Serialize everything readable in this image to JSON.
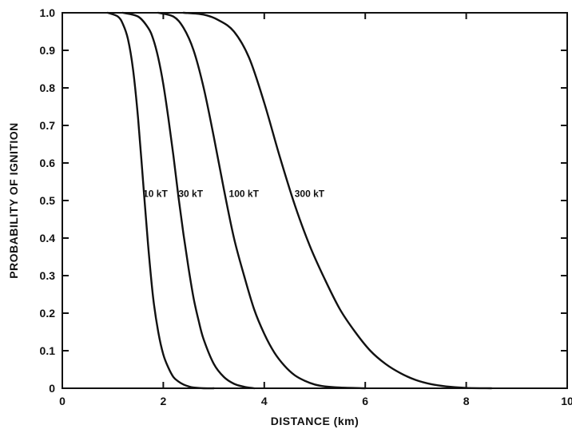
{
  "chart_data": {
    "type": "line",
    "title": "",
    "xlabel": "DISTANCE (km)",
    "ylabel": "PROBABILITY OF IGNITION",
    "xlim": [
      0,
      10
    ],
    "ylim": [
      0,
      1.0
    ],
    "grid": false,
    "x_ticks": [
      "0",
      "2",
      "4",
      "6",
      "8",
      "10"
    ],
    "y_ticks": [
      "0",
      "0.1",
      "0.2",
      "0.3",
      "0.4",
      "0.5",
      "0.6",
      "0.7",
      "0.8",
      "0.9",
      "1.0"
    ],
    "series": [
      {
        "name": "10 kT",
        "x": [
          0.9,
          1.1,
          1.2,
          1.3,
          1.4,
          1.5,
          1.6,
          1.7,
          1.8,
          1.9,
          2.0,
          2.1,
          2.2,
          2.3,
          2.4,
          2.5,
          2.6,
          2.8,
          3.0
        ],
        "y": [
          1.0,
          0.99,
          0.97,
          0.93,
          0.85,
          0.72,
          0.55,
          0.38,
          0.24,
          0.15,
          0.09,
          0.055,
          0.03,
          0.018,
          0.01,
          0.005,
          0.002,
          0.0,
          0.0
        ]
      },
      {
        "name": "30 kT",
        "x": [
          1.2,
          1.5,
          1.7,
          1.8,
          1.9,
          2.0,
          2.1,
          2.2,
          2.3,
          2.4,
          2.5,
          2.6,
          2.7,
          2.8,
          3.0,
          3.2,
          3.4,
          3.6,
          3.8
        ],
        "y": [
          1.0,
          0.99,
          0.96,
          0.93,
          0.88,
          0.81,
          0.72,
          0.62,
          0.51,
          0.41,
          0.32,
          0.24,
          0.18,
          0.13,
          0.065,
          0.03,
          0.012,
          0.004,
          0.0
        ]
      },
      {
        "name": "100 kT",
        "x": [
          1.9,
          2.2,
          2.4,
          2.6,
          2.8,
          3.0,
          3.2,
          3.4,
          3.6,
          3.8,
          4.0,
          4.2,
          4.4,
          4.6,
          4.8,
          5.0,
          5.2,
          5.5,
          6.0
        ],
        "y": [
          1.0,
          0.99,
          0.96,
          0.9,
          0.8,
          0.67,
          0.53,
          0.4,
          0.3,
          0.21,
          0.145,
          0.095,
          0.06,
          0.035,
          0.02,
          0.01,
          0.005,
          0.002,
          0.0
        ]
      },
      {
        "name": "300 kT",
        "x": [
          2.4,
          2.8,
          3.1,
          3.4,
          3.7,
          4.0,
          4.3,
          4.6,
          4.9,
          5.2,
          5.5,
          5.8,
          6.1,
          6.4,
          6.7,
          7.0,
          7.3,
          7.6,
          8.0,
          8.5
        ],
        "y": [
          1.0,
          0.995,
          0.98,
          0.95,
          0.88,
          0.76,
          0.62,
          0.49,
          0.38,
          0.29,
          0.21,
          0.15,
          0.1,
          0.065,
          0.04,
          0.022,
          0.011,
          0.005,
          0.001,
          0.0
        ]
      }
    ],
    "annotations": [
      {
        "text": "10 kT",
        "x": 1.6,
        "y": 0.52
      },
      {
        "text": "30 kT",
        "x": 2.3,
        "y": 0.52
      },
      {
        "text": "100 kT",
        "x": 3.3,
        "y": 0.52
      },
      {
        "text": "300 kT",
        "x": 4.6,
        "y": 0.52
      }
    ]
  }
}
